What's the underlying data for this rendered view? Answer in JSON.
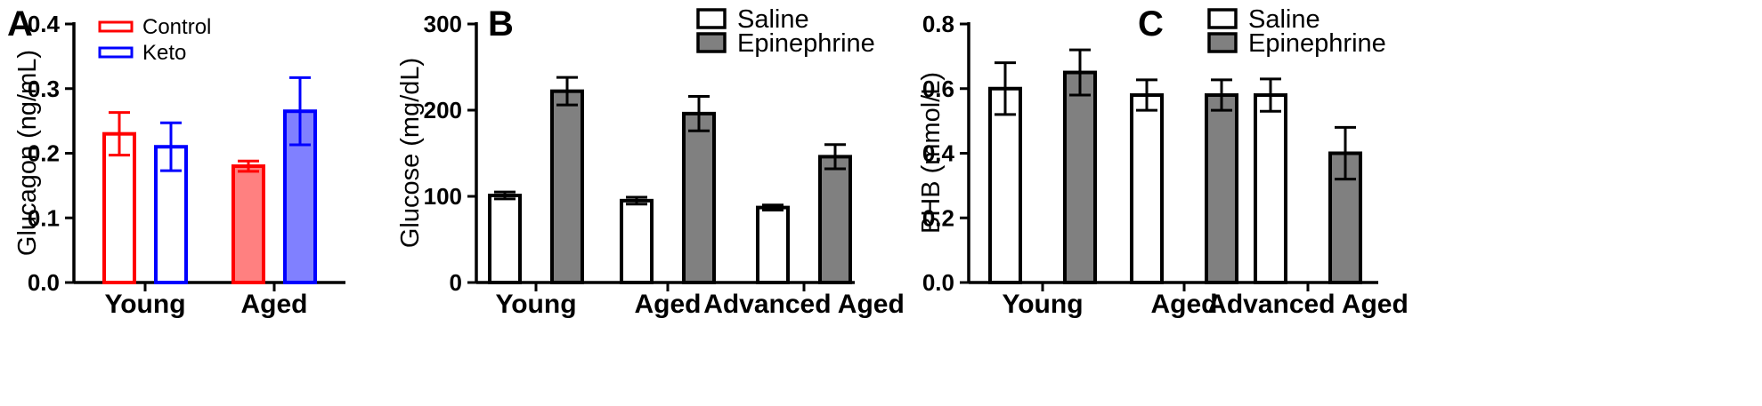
{
  "chart_data": [
    {
      "type": "bar",
      "panel": "A",
      "ylabel": "Glucagon (ng/mL)",
      "categories": [
        "Young",
        "Aged"
      ],
      "yticks": [
        "0.0",
        "0.1",
        "0.2",
        "0.3",
        "0.4"
      ],
      "ylim": [
        0,
        0.4
      ],
      "legend": "top-left",
      "colors": {
        "Control": "#ff0000",
        "Keto": "#0000ff",
        "Control_aged_fill": "#ff8080",
        "Keto_aged_fill": "#8080ff"
      },
      "series": [
        {
          "name": "Control",
          "values": [
            0.23,
            0.18
          ],
          "errors": [
            0.033,
            0.008
          ]
        },
        {
          "name": "Keto",
          "values": [
            0.21,
            0.265
          ],
          "errors": [
            0.037,
            0.052
          ]
        }
      ]
    },
    {
      "type": "bar",
      "panel": "B",
      "ylabel": "Glucose (mg/dL)",
      "categories": [
        "Young",
        "Aged",
        "Advanced Aged"
      ],
      "yticks": [
        "0",
        "100",
        "200",
        "300"
      ],
      "ylim": [
        0,
        300
      ],
      "legend": "top-right",
      "colors": {
        "Saline": "#ffffff",
        "Epinephrine": "#808080"
      },
      "series": [
        {
          "name": "Saline",
          "values": [
            101,
            95,
            87
          ],
          "errors": [
            4,
            4,
            3
          ]
        },
        {
          "name": "Epinephrine",
          "values": [
            222,
            196,
            146
          ],
          "errors": [
            16,
            20,
            14
          ]
        }
      ]
    },
    {
      "type": "bar",
      "panel": "C",
      "ylabel": "BHB (mmol/L)",
      "categories": [
        "Young",
        "Aged",
        "Advanced Aged"
      ],
      "yticks": [
        "0.0",
        "0.2",
        "0.4",
        "0.6",
        "0.8"
      ],
      "ylim": [
        0,
        0.8
      ],
      "legend": "top-right",
      "colors": {
        "Saline": "#ffffff",
        "Epinephrine": "#808080"
      },
      "series": [
        {
          "name": "Saline",
          "values": [
            0.6,
            0.58,
            0.58
          ],
          "errors": [
            0.08,
            0.047,
            0.05
          ]
        },
        {
          "name": "Epinephrine",
          "values": [
            0.65,
            0.58,
            0.4
          ],
          "errors": [
            0.07,
            0.047,
            0.08
          ]
        }
      ]
    }
  ]
}
